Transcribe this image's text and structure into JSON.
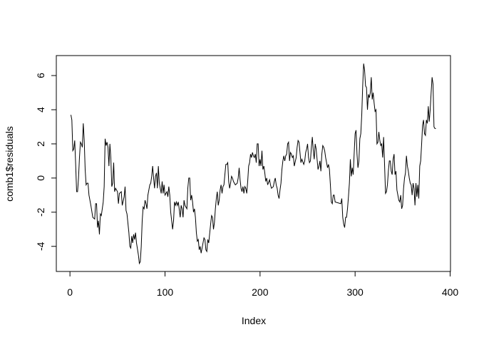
{
  "chart_data": {
    "type": "line",
    "xlabel": "Index",
    "ylabel": "comb1$residuals",
    "xlim": [
      -14.36,
      400.36
    ],
    "ylim": [
      -5.47,
      7.17
    ],
    "xticks": [
      0,
      100,
      200,
      300,
      400
    ],
    "yticks": [
      -4,
      -2,
      0,
      2,
      4,
      6
    ],
    "color": "#000000",
    "grid": false,
    "x": [
      1,
      2,
      3,
      4,
      5,
      6,
      7,
      8,
      9,
      10,
      11,
      12,
      13,
      14,
      15,
      16,
      17,
      18,
      19,
      20,
      22,
      24,
      26,
      27,
      28,
      29,
      30,
      31,
      32,
      33,
      35,
      36,
      37,
      38,
      39,
      40,
      41,
      42,
      43,
      44,
      45,
      46,
      47,
      48,
      50,
      51,
      52,
      54,
      55,
      57,
      58,
      59,
      60,
      62,
      63,
      64,
      65,
      66,
      67,
      68,
      69,
      70,
      72,
      73,
      74,
      75,
      76,
      77,
      78,
      79,
      80,
      81,
      82,
      84,
      85,
      86,
      87,
      88,
      89,
      90,
      91,
      92,
      93,
      94,
      96,
      97,
      98,
      99,
      100,
      102,
      103,
      104,
      105,
      106,
      107,
      108,
      109,
      110,
      111,
      112,
      113,
      114,
      116,
      117,
      118,
      119,
      120,
      121,
      123,
      124,
      125,
      126,
      127,
      128,
      129,
      130,
      131,
      132,
      133,
      134,
      135,
      136,
      137,
      138,
      139,
      141,
      142,
      143,
      144,
      145,
      146,
      148,
      149,
      150,
      151,
      152,
      153,
      154,
      155,
      156,
      157,
      158,
      159,
      160,
      161,
      162,
      163,
      164,
      165,
      166,
      167,
      168,
      169,
      170,
      171,
      172,
      174,
      176,
      177,
      178,
      179,
      180,
      181,
      182,
      183,
      184,
      185,
      186,
      187,
      188,
      189,
      190,
      191,
      192,
      193,
      194,
      195,
      196,
      197,
      198,
      199,
      200,
      201,
      202,
      203,
      204,
      205,
      206,
      207,
      208,
      210,
      211,
      212,
      214,
      215,
      216,
      217,
      218,
      219,
      220,
      221,
      222,
      223,
      224,
      225,
      226,
      227,
      228,
      229,
      230,
      231,
      232,
      233,
      234,
      235,
      236,
      238,
      239,
      240,
      241,
      242,
      243,
      244,
      246,
      247,
      248,
      249,
      250,
      251,
      252,
      253,
      254,
      255,
      256,
      257,
      258,
      259,
      260,
      261,
      262,
      263,
      264,
      265,
      266,
      267,
      268,
      269,
      270,
      271,
      272,
      273,
      274,
      275,
      276,
      277,
      278,
      279,
      285,
      286,
      287,
      288,
      289,
      290,
      291,
      292,
      293,
      294,
      295,
      296,
      297,
      298,
      299,
      300,
      301,
      302,
      303,
      304,
      305,
      306,
      307,
      308,
      309,
      310,
      311,
      312,
      313,
      314,
      315,
      316,
      317,
      318,
      319,
      320,
      321,
      322,
      323,
      324,
      325,
      326,
      327,
      328,
      329,
      330,
      331,
      332,
      333,
      334,
      335,
      336,
      337,
      338,
      339,
      340,
      341,
      342,
      343,
      344,
      345,
      346,
      347,
      348,
      349,
      350,
      351,
      352,
      353,
      354,
      355,
      356,
      357,
      358,
      359,
      360,
      361,
      362,
      363,
      364,
      365,
      366,
      367,
      368,
      369,
      370,
      371,
      372,
      373,
      374,
      375,
      376,
      377,
      378,
      379,
      380,
      381,
      382,
      383,
      384,
      385
    ],
    "values": [
      3.7,
      3.4,
      1.6,
      1.7,
      2.2,
      0.8,
      -0.8,
      -0.8,
      0.0,
      1.2,
      2.1,
      2.0,
      1.8,
      3.2,
      2.2,
      0.5,
      -0.4,
      -0.3,
      -0.3,
      -1.0,
      -1.6,
      -2.3,
      -2.4,
      -1.5,
      -1.5,
      -2.9,
      -2.5,
      -3.3,
      -2.1,
      -2.2,
      -1.4,
      -0.5,
      2.3,
      1.9,
      2.1,
      1.8,
      0.7,
      2.0,
      1.2,
      -0.5,
      -0.3,
      0.9,
      -0.8,
      -0.6,
      -0.8,
      -1.5,
      -0.9,
      -0.8,
      -1.6,
      -1.1,
      -0.5,
      -1.9,
      -2.1,
      -3.2,
      -4.0,
      -4.1,
      -3.4,
      -3.8,
      -3.3,
      -3.6,
      -3.2,
      -3.8,
      -4.5,
      -5.0,
      -4.9,
      -4.0,
      -2.5,
      -1.7,
      -1.8,
      -1.3,
      -1.5,
      -1.8,
      -1.0,
      -0.4,
      -0.3,
      0.1,
      0.7,
      0.0,
      -0.6,
      0.1,
      0.3,
      -0.6,
      0.7,
      -0.3,
      -0.9,
      -0.2,
      -0.9,
      -0.4,
      -1.0,
      -0.8,
      -1.1,
      -0.5,
      -1.0,
      -2.0,
      -2.5,
      -3.0,
      -2.5,
      -1.4,
      -1.6,
      -1.4,
      -1.6,
      -1.4,
      -2.3,
      -1.6,
      -1.8,
      -2.3,
      -1.3,
      -1.6,
      -1.8,
      -0.6,
      0.0,
      0.0,
      -1.3,
      -1.0,
      -1.4,
      -2.0,
      -1.8,
      -2.3,
      -3.2,
      -3.7,
      -3.6,
      -4.2,
      -4.0,
      -4.4,
      -4.1,
      -3.5,
      -3.6,
      -4.2,
      -4.3,
      -3.6,
      -3.8,
      -2.7,
      -2.2,
      -2.3,
      -3.0,
      -2.6,
      -1.8,
      -1.2,
      -0.8,
      -1.6,
      -1.3,
      -0.7,
      -0.4,
      -0.9,
      -0.5,
      -0.4,
      0.2,
      0.8,
      0.8,
      0.9,
      -0.2,
      -0.6,
      -0.3,
      0.1,
      0.0,
      -0.2,
      -0.4,
      -0.3,
      0.0,
      0.6,
      -0.1,
      -0.6,
      -0.8,
      -0.5,
      -0.9,
      -0.5,
      -0.6,
      -0.9,
      -0.2,
      0.7,
      0.9,
      1.4,
      1.2,
      1.5,
      1.3,
      1.2,
      1.4,
      0.9,
      2.0,
      2.0,
      0.7,
      1.1,
      0.7,
      1.6,
      0.5,
      0.7,
      0.3,
      -0.2,
      0.0,
      -0.4,
      -0.1,
      -0.4,
      -0.6,
      -0.5,
      -0.2,
      0.0,
      -0.4,
      -0.6,
      -1.0,
      -1.2,
      -0.7,
      -0.3,
      0.5,
      1.0,
      1.3,
      1.0,
      1.3,
      1.4,
      2.0,
      2.1,
      1.0,
      1.5,
      1.4,
      1.2,
      1.3,
      0.7,
      1.2,
      1.8,
      2.2,
      2.1,
      1.5,
      0.9,
      1.1,
      0.8,
      1.0,
      1.5,
      1.7,
      2.0,
      1.2,
      0.9,
      1.0,
      1.8,
      2.4,
      1.6,
      1.1,
      2.0,
      1.7,
      1.1,
      0.5,
      0.7,
      1.0,
      0.4,
      1.4,
      1.9,
      1.8,
      1.6,
      1.2,
      0.9,
      0.6,
      0.8,
      0.5,
      -0.4,
      -1.4,
      -1.5,
      -1.0,
      -1.0,
      -1.4,
      -1.5,
      -1.2,
      -2.3,
      -2.7,
      -2.9,
      -2.3,
      -2.3,
      -1.8,
      -1.1,
      -0.3,
      1.1,
      0.1,
      0.6,
      0.2,
      1.4,
      2.6,
      2.8,
      1.4,
      0.6,
      1.0,
      2.3,
      2.6,
      3.7,
      5.4,
      6.7,
      6.3,
      5.4,
      5.3,
      4.0,
      4.9,
      4.7,
      5.0,
      5.9,
      4.6,
      5.0,
      4.4,
      3.9,
      4.0,
      2.0,
      2.1,
      2.7,
      2.2,
      1.9,
      2.0,
      1.2,
      2.4,
      0.8,
      -0.9,
      -0.8,
      -0.4,
      0.4,
      1.0,
      1.0,
      0.4,
      0.2,
      1.1,
      1.4,
      0.2,
      0.4,
      -0.7,
      -1.0,
      -1.3,
      -1.4,
      -1.0,
      -1.8,
      -1.6,
      -0.6,
      0.0,
      0.3,
      1.3,
      0.7,
      0.4,
      0.0,
      -0.3,
      -0.4,
      -1.0,
      -0.3,
      -0.6,
      -1.6,
      -0.3,
      -1.1,
      -0.4,
      -1.2,
      0.7,
      1.0,
      2.0,
      3.1,
      3.4,
      2.6,
      2.5,
      3.4,
      3.2,
      4.2,
      3.3,
      4.0,
      5.0,
      5.9,
      5.5,
      3.0,
      2.9,
      2.9
    ]
  }
}
